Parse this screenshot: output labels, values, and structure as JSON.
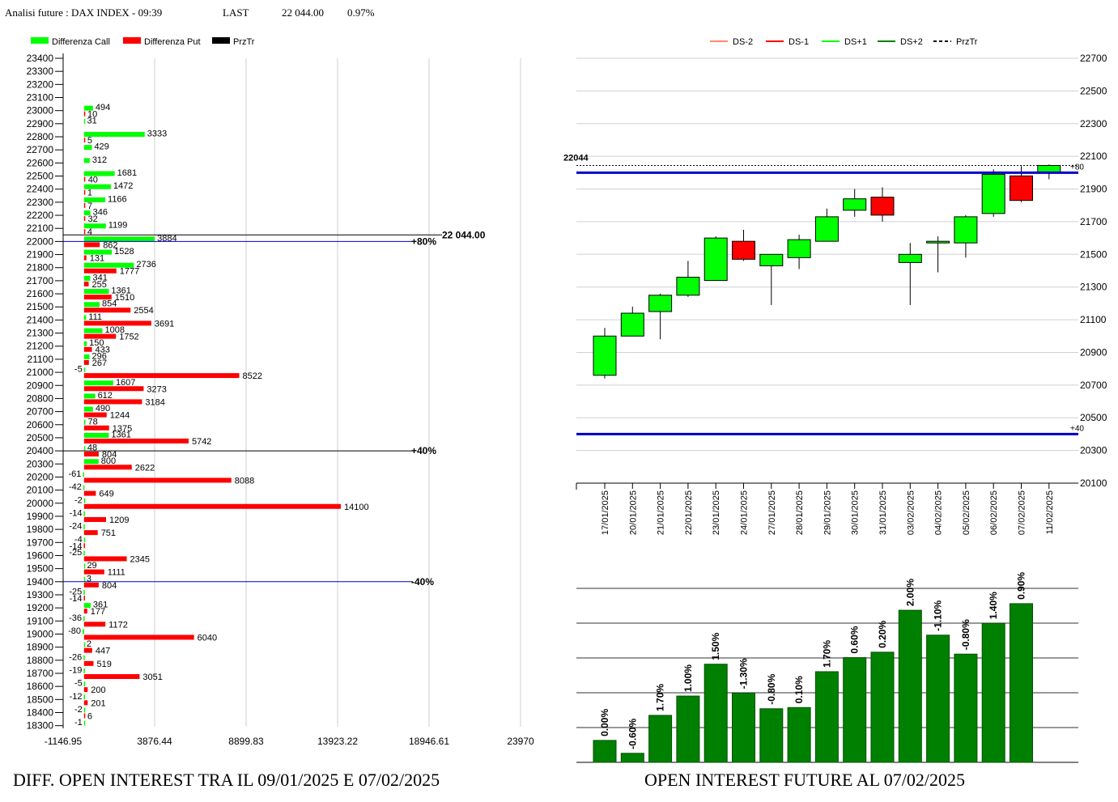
{
  "header": {
    "label": "Analisi future : DAX INDEX - 09:39",
    "last_label": "LAST",
    "last_value": "22 044.00",
    "change": "0.97%"
  },
  "titles": {
    "left": "DIFF. OPEN INTEREST TRA IL 09/01/2025 E 07/02/2025",
    "right": "OPEN INTEREST FUTURE AL 07/02/2025"
  },
  "colors": {
    "call": "#00ff00",
    "put": "#ff0000",
    "przTr": "#000000",
    "level": "#0000cc",
    "bar": "#008000"
  },
  "chart_data": [
    {
      "type": "bar",
      "orientation": "horizontal",
      "legend": [
        "Differenza Call",
        "Differenza Put",
        "PrzTr"
      ],
      "strikes": [
        23400,
        23300,
        23200,
        23100,
        23000,
        22900,
        22800,
        22700,
        22600,
        22500,
        22400,
        22300,
        22200,
        22100,
        22000,
        21900,
        21800,
        21700,
        21600,
        21500,
        21400,
        21300,
        21200,
        21100,
        21000,
        20900,
        20800,
        20700,
        20600,
        20500,
        20400,
        20300,
        20200,
        20100,
        20000,
        19900,
        19800,
        19700,
        19600,
        19500,
        19400,
        19300,
        19200,
        19100,
        19000,
        18900,
        18800,
        18700,
        18600,
        18500,
        18400,
        18300
      ],
      "series": [
        {
          "name": "Differenza Call",
          "values": [
            null,
            null,
            null,
            null,
            494,
            31,
            3333,
            429,
            312,
            1681,
            1472,
            1166,
            346,
            1199,
            3884,
            1528,
            2736,
            341,
            1361,
            854,
            111,
            1008,
            150,
            296,
            -5,
            1607,
            612,
            490,
            78,
            1361,
            48,
            800,
            -61,
            -42,
            -2,
            -14,
            -24,
            -4,
            -25,
            29,
            3,
            -25,
            361,
            -36,
            -80,
            2,
            -26,
            -19,
            -5,
            -12,
            -2,
            -1
          ]
        },
        {
          "name": "Differenza Put",
          "values": [
            null,
            null,
            null,
            null,
            10,
            null,
            5,
            null,
            null,
            40,
            1,
            7,
            32,
            4,
            862,
            131,
            1777,
            255,
            1510,
            2554,
            3691,
            1752,
            433,
            267,
            8522,
            3273,
            3184,
            1244,
            1375,
            5742,
            804,
            2622,
            8088,
            649,
            14100,
            1209,
            751,
            -14,
            2345,
            1111,
            804,
            -14,
            177,
            1172,
            6040,
            447,
            519,
            3051,
            200,
            201,
            6,
            null
          ]
        }
      ],
      "price_line": {
        "value": 22044,
        "label": "22 044.00"
      },
      "levels": [
        {
          "strike": 22000,
          "label": "+80%"
        },
        {
          "strike": 20400,
          "label": "+40%"
        },
        {
          "strike": 19400,
          "label": "-40%"
        }
      ],
      "xticks": [
        "-1146.95",
        "3876.44",
        "8899.83",
        "13923.22",
        "18946.61",
        "23970"
      ],
      "xlim": [
        -1146.95,
        23970
      ]
    },
    {
      "type": "candlestick",
      "legend": [
        "DS-2",
        "DS-1",
        "DS+1",
        "DS+2",
        "PrzTr"
      ],
      "dates": [
        "17/01/2025",
        "20/01/2025",
        "21/01/2025",
        "22/01/2025",
        "23/01/2025",
        "24/01/2025",
        "27/01/2025",
        "28/01/2025",
        "29/01/2025",
        "30/01/2025",
        "31/01/2025",
        "03/02/2025",
        "04/02/2025",
        "05/02/2025",
        "06/02/2025",
        "07/02/2025",
        "11/02/2025"
      ],
      "candles": [
        {
          "o": 20760,
          "h": 21050,
          "l": 20740,
          "c": 21000
        },
        {
          "o": 21000,
          "h": 21180,
          "l": 21000,
          "c": 21140
        },
        {
          "o": 21150,
          "h": 21260,
          "l": 20980,
          "c": 21250
        },
        {
          "o": 21250,
          "h": 21460,
          "l": 21240,
          "c": 21360
        },
        {
          "o": 21340,
          "h": 21610,
          "l": 21340,
          "c": 21600
        },
        {
          "o": 21580,
          "h": 21650,
          "l": 21460,
          "c": 21470
        },
        {
          "o": 21430,
          "h": 21500,
          "l": 21190,
          "c": 21500
        },
        {
          "o": 21480,
          "h": 21620,
          "l": 21410,
          "c": 21590
        },
        {
          "o": 21580,
          "h": 21780,
          "l": 21580,
          "c": 21730
        },
        {
          "o": 21770,
          "h": 21900,
          "l": 21730,
          "c": 21840
        },
        {
          "o": 21850,
          "h": 21910,
          "l": 21700,
          "c": 21740
        },
        {
          "o": 21450,
          "h": 21570,
          "l": 21190,
          "c": 21500
        },
        {
          "o": 21570,
          "h": 21610,
          "l": 21390,
          "c": 21580
        },
        {
          "o": 21570,
          "h": 21740,
          "l": 21480,
          "c": 21730
        },
        {
          "o": 21750,
          "h": 22020,
          "l": 21730,
          "c": 21990
        },
        {
          "o": 21980,
          "h": 22040,
          "l": 21820,
          "c": 21830
        },
        {
          "o": 22000,
          "h": 22050,
          "l": 21960,
          "c": 22044
        }
      ],
      "yticks": [
        22700,
        22500,
        22300,
        22100,
        21900,
        21700,
        21500,
        21300,
        21100,
        20900,
        20700,
        20500,
        20300,
        20100
      ],
      "ylim": [
        20100,
        22700
      ],
      "price_line": {
        "value": 22044,
        "label": "22044"
      },
      "levels": [
        {
          "value": 22000,
          "label": "+80"
        },
        {
          "value": 20400,
          "label": "+40"
        }
      ]
    },
    {
      "type": "bar",
      "values": [
        0.0,
        -0.6,
        1.7,
        1.0,
        1.5,
        -1.3,
        -0.8,
        0.1,
        1.7,
        0.6,
        0.2,
        2.0,
        -1.1,
        -0.8,
        1.4,
        0.9
      ],
      "labels": [
        "0.00%",
        "-0.60%",
        "1.70%",
        "1.00%",
        "1.50%",
        "-1.30%",
        "-0.80%",
        "0.10%",
        "1.70%",
        "0.60%",
        "0.20%",
        "2.00%",
        "-1.10%",
        "-0.80%",
        "1.40%",
        "0.90%"
      ],
      "open_interest_relative": [
        0.126,
        0.052,
        0.27,
        0.381,
        0.564,
        0.398,
        0.308,
        0.315,
        0.521,
        0.602,
        0.633,
        0.874,
        0.731,
        0.622,
        0.799,
        0.912
      ],
      "grid": true
    }
  ]
}
